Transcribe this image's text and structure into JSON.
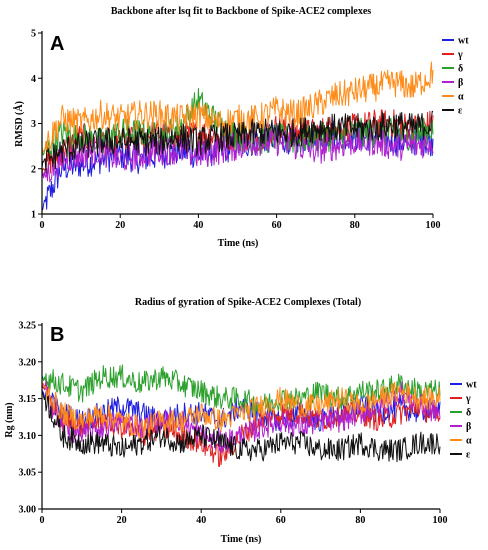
{
  "chart_data": [
    {
      "type": "line",
      "panel_label": "A",
      "title": "Backbone after lsq fit to Backbone of Spike-ACE2 complexes",
      "xlabel": "Time (ns)",
      "ylabel": "RMSD (Å)",
      "xlim": [
        0,
        100
      ],
      "ylim": [
        1,
        5
      ],
      "xticks": [
        "0",
        "20",
        "40",
        "60",
        "80",
        "100"
      ],
      "yticks": [
        "1",
        "2",
        "3",
        "4",
        "5"
      ],
      "x": [
        0,
        5,
        10,
        15,
        20,
        25,
        30,
        35,
        40,
        45,
        50,
        55,
        60,
        65,
        70,
        75,
        80,
        85,
        90,
        95,
        100
      ],
      "series": [
        {
          "name": "wt",
          "color": "#1f1fe0",
          "values": [
            1.1,
            2.0,
            2.1,
            2.2,
            2.3,
            2.2,
            2.3,
            2.4,
            2.3,
            2.4,
            2.5,
            2.6,
            2.7,
            2.6,
            2.7,
            2.8,
            2.7,
            2.7,
            2.6,
            2.6,
            2.6
          ]
        },
        {
          "name": "γ",
          "color": "#e02020",
          "values": [
            2.0,
            2.4,
            2.7,
            2.6,
            2.6,
            2.7,
            2.8,
            2.7,
            2.8,
            2.7,
            2.7,
            2.7,
            2.9,
            2.8,
            2.8,
            2.9,
            2.9,
            3.0,
            3.0,
            2.9,
            3.0
          ]
        },
        {
          "name": "δ",
          "color": "#2ca02c",
          "values": [
            2.3,
            2.8,
            2.7,
            2.6,
            2.8,
            2.8,
            2.7,
            2.9,
            3.5,
            3.0,
            2.7,
            2.6,
            2.7,
            2.6,
            2.7,
            2.7,
            2.8,
            2.8,
            2.8,
            2.7,
            2.9
          ]
        },
        {
          "name": "β",
          "color": "#b020d0",
          "values": [
            1.8,
            2.2,
            2.3,
            2.4,
            2.2,
            2.3,
            2.4,
            2.4,
            2.3,
            2.4,
            2.5,
            2.6,
            2.6,
            2.5,
            2.4,
            2.5,
            2.6,
            2.6,
            2.5,
            2.5,
            2.6
          ]
        },
        {
          "name": "α",
          "color": "#ff8c1a",
          "values": [
            2.4,
            3.1,
            3.0,
            3.2,
            3.1,
            3.2,
            3.2,
            3.1,
            3.2,
            3.0,
            3.1,
            3.1,
            3.3,
            3.2,
            3.4,
            3.6,
            3.7,
            3.8,
            3.9,
            3.8,
            4.1
          ]
        },
        {
          "name": "ε",
          "color": "#111111",
          "values": [
            2.1,
            2.4,
            2.5,
            2.6,
            2.6,
            2.6,
            2.6,
            2.7,
            2.6,
            2.7,
            2.7,
            2.8,
            2.8,
            2.8,
            2.9,
            2.9,
            2.9,
            2.9,
            3.0,
            2.9,
            3.0
          ]
        }
      ]
    },
    {
      "type": "line",
      "panel_label": "B",
      "title": "Radius of gyration of Spike-ACE2 Complexes (Total)",
      "xlabel": "Time (ns)",
      "ylabel": "Rg (nm)",
      "xlim": [
        0,
        100
      ],
      "ylim": [
        3.0,
        3.25
      ],
      "xticks": [
        "0",
        "20",
        "40",
        "60",
        "80",
        "100"
      ],
      "yticks": [
        "3.00",
        "3.05",
        "3.10",
        "3.15",
        "3.20",
        "3.25"
      ],
      "x": [
        0,
        5,
        10,
        15,
        20,
        25,
        30,
        35,
        40,
        45,
        50,
        55,
        60,
        65,
        70,
        75,
        80,
        85,
        90,
        95,
        100
      ],
      "series": [
        {
          "name": "wt",
          "color": "#1f1fe0",
          "values": [
            3.16,
            3.13,
            3.12,
            3.13,
            3.14,
            3.13,
            3.12,
            3.13,
            3.13,
            3.12,
            3.14,
            3.13,
            3.12,
            3.13,
            3.12,
            3.13,
            3.14,
            3.13,
            3.14,
            3.13,
            3.14
          ]
        },
        {
          "name": "γ",
          "color": "#e02020",
          "values": [
            3.17,
            3.12,
            3.11,
            3.12,
            3.11,
            3.1,
            3.11,
            3.1,
            3.09,
            3.07,
            3.1,
            3.12,
            3.13,
            3.13,
            3.12,
            3.13,
            3.13,
            3.12,
            3.13,
            3.14,
            3.12
          ]
        },
        {
          "name": "δ",
          "color": "#2ca02c",
          "values": [
            3.18,
            3.17,
            3.16,
            3.18,
            3.18,
            3.17,
            3.18,
            3.17,
            3.16,
            3.15,
            3.15,
            3.14,
            3.15,
            3.15,
            3.16,
            3.15,
            3.16,
            3.16,
            3.17,
            3.16,
            3.16
          ]
        },
        {
          "name": "β",
          "color": "#b020d0",
          "values": [
            3.17,
            3.11,
            3.1,
            3.11,
            3.12,
            3.11,
            3.12,
            3.12,
            3.1,
            3.09,
            3.1,
            3.11,
            3.12,
            3.11,
            3.12,
            3.12,
            3.13,
            3.14,
            3.16,
            3.14,
            3.13
          ]
        },
        {
          "name": "α",
          "color": "#ff8c1a",
          "values": [
            3.17,
            3.13,
            3.12,
            3.13,
            3.12,
            3.11,
            3.12,
            3.12,
            3.13,
            3.12,
            3.13,
            3.14,
            3.15,
            3.14,
            3.14,
            3.15,
            3.14,
            3.15,
            3.16,
            3.15,
            3.15
          ]
        },
        {
          "name": "ε",
          "color": "#111111",
          "values": [
            3.16,
            3.1,
            3.09,
            3.09,
            3.08,
            3.09,
            3.1,
            3.09,
            3.1,
            3.09,
            3.08,
            3.08,
            3.09,
            3.09,
            3.08,
            3.08,
            3.09,
            3.08,
            3.08,
            3.09,
            3.09
          ]
        }
      ]
    }
  ]
}
